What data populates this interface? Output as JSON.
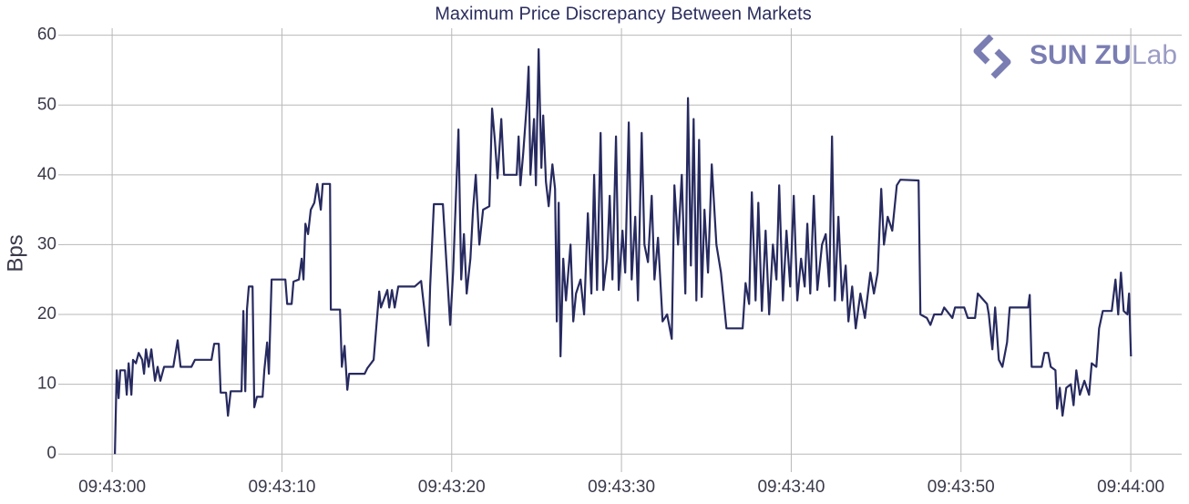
{
  "chart_data": {
    "type": "line",
    "title": "Maximum Price Discrepancy Between Markets",
    "ylabel": "Bps",
    "logo": {
      "brand": "SUN ZU",
      "suffix": "Lab"
    },
    "xlim": [
      -2.85,
      63
    ],
    "ylim": [
      -1.8,
      61
    ],
    "xticks": [
      {
        "value": 0,
        "label": "09:43:00"
      },
      {
        "value": 10,
        "label": "09:43:10"
      },
      {
        "value": 20,
        "label": "09:43:20"
      },
      {
        "value": 30,
        "label": "09:43:30"
      },
      {
        "value": 40,
        "label": "09:43:40"
      },
      {
        "value": 50,
        "label": "09:43:50"
      },
      {
        "value": 60,
        "label": "09:44:00"
      }
    ],
    "yticks": [
      0,
      10,
      20,
      30,
      40,
      50,
      60
    ],
    "grid": true,
    "series": [
      {
        "color": "#272a5f",
        "x": [
          0.16,
          0.27,
          0.38,
          0.48,
          0.75,
          0.86,
          0.97,
          1.13,
          1.23,
          1.4,
          1.56,
          1.77,
          1.88,
          1.99,
          2.15,
          2.31,
          2.52,
          2.68,
          2.84,
          3.06,
          3.6,
          3.86,
          4.03,
          4.67,
          4.88,
          5.85,
          6.01,
          6.28,
          6.39,
          6.71,
          6.82,
          6.98,
          7.62,
          7.73,
          7.84,
          7.94,
          8.05,
          8.27,
          8.37,
          8.53,
          8.86,
          8.96,
          9.13,
          9.23,
          9.39,
          10.2,
          10.31,
          10.57,
          10.68,
          11.0,
          11.16,
          11.27,
          11.38,
          11.54,
          11.7,
          11.91,
          12.08,
          12.29,
          12.4,
          12.83,
          12.88,
          13.42,
          13.53,
          13.69,
          13.85,
          13.96,
          14.87,
          15.03,
          15.4,
          15.73,
          15.83,
          16.21,
          16.32,
          16.48,
          16.64,
          16.85,
          17.82,
          18.2,
          18.63,
          18.73,
          18.95,
          19.48,
          19.91,
          20.08,
          20.4,
          20.56,
          20.72,
          20.88,
          21.1,
          21.26,
          21.42,
          21.63,
          21.85,
          22.22,
          22.38,
          22.54,
          22.7,
          22.92,
          23.08,
          23.83,
          23.94,
          24.05,
          24.21,
          24.42,
          24.53,
          24.64,
          24.85,
          24.96,
          25.12,
          25.28,
          25.39,
          25.55,
          25.71,
          25.93,
          26.09,
          26.19,
          26.3,
          26.41,
          26.57,
          26.73,
          27.0,
          27.16,
          27.32,
          27.59,
          27.8,
          28.02,
          28.23,
          28.39,
          28.56,
          28.77,
          28.93,
          29.15,
          29.31,
          29.47,
          29.68,
          29.84,
          30.06,
          30.22,
          30.43,
          30.6,
          30.81,
          30.97,
          31.19,
          31.35,
          31.56,
          31.78,
          31.94,
          32.15,
          32.42,
          32.69,
          32.96,
          33.12,
          33.33,
          33.55,
          33.76,
          33.92,
          34.09,
          34.25,
          34.41,
          34.57,
          34.73,
          34.89,
          35.1,
          35.32,
          35.59,
          35.86,
          36.18,
          37.14,
          37.31,
          37.52,
          37.68,
          37.9,
          38.06,
          38.27,
          38.49,
          38.7,
          38.92,
          39.13,
          39.29,
          39.51,
          39.72,
          39.94,
          40.15,
          40.36,
          40.58,
          40.79,
          40.95,
          41.12,
          41.33,
          41.54,
          41.81,
          42.03,
          42.24,
          42.4,
          42.57,
          42.78,
          43.0,
          43.21,
          43.37,
          43.59,
          43.8,
          44.07,
          44.34,
          44.66,
          44.87,
          45.09,
          45.3,
          45.46,
          45.68,
          45.95,
          46.22,
          46.43,
          47.5,
          47.61,
          47.99,
          48.2,
          48.42,
          48.85,
          49.01,
          49.49,
          49.65,
          50.19,
          50.4,
          50.83,
          50.99,
          51.53,
          51.64,
          51.85,
          52.01,
          52.23,
          52.44,
          52.71,
          52.87,
          53.95,
          54.05,
          54.16,
          54.75,
          54.91,
          55.13,
          55.29,
          55.56,
          55.66,
          55.82,
          55.98,
          56.2,
          56.47,
          56.63,
          56.79,
          57.0,
          57.27,
          57.54,
          57.7,
          57.97,
          58.13,
          58.35,
          58.88,
          59.1,
          59.26,
          59.42,
          59.58,
          59.8,
          59.9,
          60.01
        ],
        "values": [
          0,
          12,
          8,
          12,
          12,
          8.5,
          13,
          8.5,
          13.5,
          13,
          14.5,
          13.5,
          11.5,
          15,
          12.5,
          15,
          10.5,
          12.5,
          10.5,
          12.5,
          12.5,
          16.3,
          12.5,
          12.5,
          13.5,
          13.5,
          15.8,
          15.8,
          8.8,
          8.8,
          5.5,
          9,
          9,
          20.5,
          9,
          20.8,
          24,
          24,
          6.7,
          8.2,
          8.2,
          12,
          16,
          11.5,
          25,
          25,
          21.5,
          21.5,
          24.7,
          25,
          28,
          25,
          33,
          31.5,
          35,
          36,
          38.7,
          35,
          38.7,
          38.7,
          20.7,
          20.7,
          12.5,
          15.5,
          9.2,
          11.5,
          11.5,
          12.3,
          13.5,
          23.3,
          21,
          23.5,
          21,
          23.5,
          21,
          24,
          24,
          24.8,
          15.5,
          24,
          35.8,
          35.8,
          18.5,
          26,
          46.5,
          25,
          31.5,
          23,
          28,
          35,
          40,
          30,
          35,
          35.5,
          49.5,
          45,
          39.5,
          48,
          40,
          40,
          45.5,
          38.5,
          43,
          50,
          55.5,
          40,
          48,
          38.5,
          58,
          41,
          48.5,
          39,
          35.5,
          41.5,
          38,
          19,
          36,
          14,
          28,
          22,
          30,
          19,
          23,
          25,
          20,
          34.5,
          23,
          40,
          23.5,
          46,
          23.5,
          28,
          37,
          25,
          45.5,
          23.5,
          32,
          26,
          47.5,
          25,
          34,
          22,
          46,
          30,
          27.5,
          37,
          25,
          31,
          19,
          20,
          16.5,
          38.5,
          30,
          40,
          23,
          51,
          27,
          48,
          22,
          45,
          22.5,
          35,
          26,
          41.5,
          30,
          26,
          18,
          18,
          24.5,
          21.5,
          37.5,
          22,
          36,
          20.5,
          32,
          20,
          30,
          25,
          38.5,
          22,
          32,
          24,
          37,
          22,
          28,
          24,
          33,
          23,
          37,
          23.5,
          30,
          31.5,
          24,
          45.5,
          22,
          34,
          22,
          27,
          19,
          24,
          18,
          23,
          19.5,
          26,
          23,
          26,
          38,
          30,
          34,
          32,
          38.5,
          39.3,
          39.2,
          20,
          19.5,
          18.5,
          20,
          20,
          21,
          19.5,
          21,
          21,
          19.5,
          19.5,
          23,
          21.5,
          20,
          15,
          21,
          13.5,
          12.5,
          16,
          21,
          21,
          22.8,
          12.5,
          12.5,
          14.5,
          14.5,
          12.5,
          12,
          6.5,
          9.5,
          5.5,
          9.5,
          10,
          7,
          12,
          8.5,
          10.5,
          8.5,
          13,
          12.5,
          18,
          20.5,
          20.5,
          25,
          20,
          26,
          20.5,
          20,
          23,
          14
        ]
      }
    ]
  }
}
